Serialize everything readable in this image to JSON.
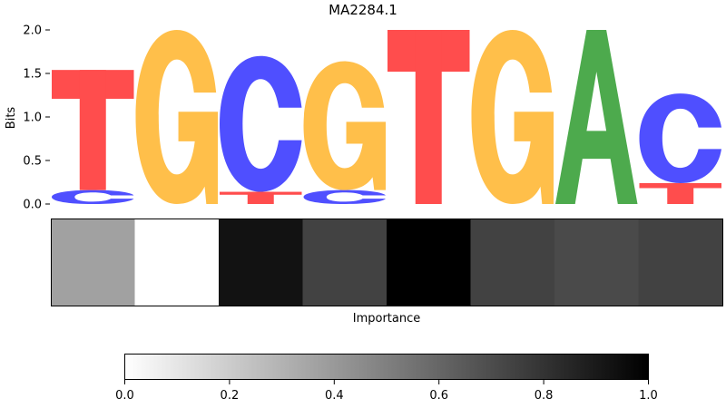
{
  "chart_data": {
    "type": "sequence-logo",
    "title": "MA2284.1",
    "ylabel": "Bits",
    "ylim": [
      0,
      2.0
    ],
    "yticks": [
      "0.0",
      "0.5",
      "1.0",
      "1.5",
      "2.0"
    ],
    "alphabet": [
      "A",
      "C",
      "G",
      "T"
    ],
    "colors": {
      "A": "#4daa4d",
      "C": "#4f4fff",
      "G": "#ffbf4a",
      "T": "#ff4d4d"
    },
    "positions": [
      {
        "letters": [
          {
            "base": "C",
            "bits": 0.16
          },
          {
            "base": "T",
            "bits": 1.38
          }
        ]
      },
      {
        "letters": [
          {
            "base": "G",
            "bits": 2.0
          }
        ]
      },
      {
        "letters": [
          {
            "base": "T",
            "bits": 0.14
          },
          {
            "base": "C",
            "bits": 1.56
          }
        ]
      },
      {
        "letters": [
          {
            "base": "C",
            "bits": 0.16
          },
          {
            "base": "G",
            "bits": 1.48
          }
        ]
      },
      {
        "letters": [
          {
            "base": "T",
            "bits": 2.0
          }
        ]
      },
      {
        "letters": [
          {
            "base": "G",
            "bits": 2.0
          }
        ]
      },
      {
        "letters": [
          {
            "base": "A",
            "bits": 2.0
          }
        ]
      },
      {
        "letters": [
          {
            "base": "T",
            "bits": 0.24
          },
          {
            "base": "C",
            "bits": 1.03
          }
        ]
      }
    ],
    "importance": {
      "xlabel": "Importance",
      "values": [
        0.37,
        0.0,
        0.93,
        0.74,
        1.0,
        0.74,
        0.71,
        0.74
      ],
      "colorbar": {
        "range": [
          0,
          1
        ],
        "ticks": [
          "0.0",
          "0.2",
          "0.4",
          "0.6",
          "0.8",
          "1.0"
        ]
      }
    }
  }
}
